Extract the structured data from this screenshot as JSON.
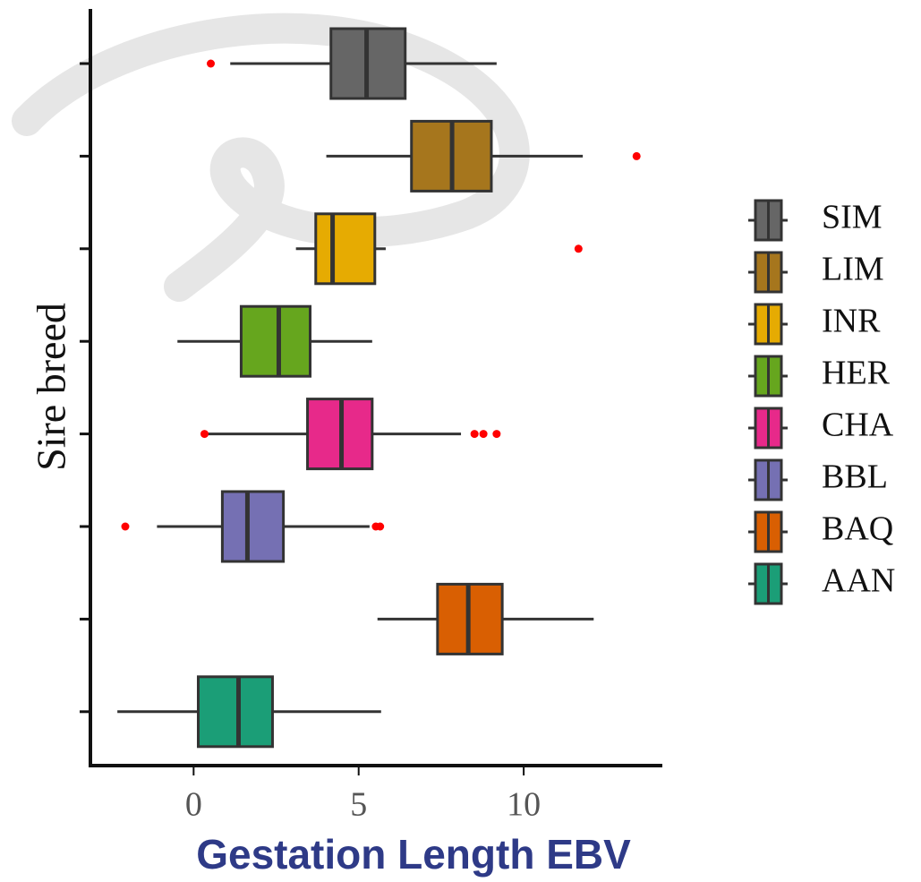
{
  "chart_data": {
    "type": "boxplot",
    "orientation": "horizontal",
    "xlabel": "Gestation Length EBV",
    "ylabel": "Sire breed",
    "xlim": [
      -3.1,
      14.2
    ],
    "xticks": [
      0,
      5,
      10
    ],
    "series": [
      {
        "name": "SIM",
        "color": "#666666",
        "whisker_low": 1.11,
        "q1": 4.16,
        "median": 5.24,
        "q3": 6.41,
        "whisker_high": 9.18,
        "outliers": [
          0.52
        ]
      },
      {
        "name": "LIM",
        "color": "#A6761D",
        "whisker_low": 4.02,
        "q1": 6.6,
        "median": 7.83,
        "q3": 9.02,
        "whisker_high": 11.79,
        "outliers": [
          13.42
        ]
      },
      {
        "name": "INR",
        "color": "#E6AB02",
        "whisker_low": 3.1,
        "q1": 3.7,
        "median": 4.21,
        "q3": 5.49,
        "whisker_high": 5.82,
        "outliers": [
          11.66
        ]
      },
      {
        "name": "HER",
        "color": "#66A61E",
        "whisker_low": -0.49,
        "q1": 1.44,
        "median": 2.58,
        "q3": 3.53,
        "whisker_high": 5.41,
        "outliers": []
      },
      {
        "name": "CHA",
        "color": "#E7298A",
        "whisker_low": 0.38,
        "q1": 3.45,
        "median": 4.48,
        "q3": 5.41,
        "whisker_high": 8.1,
        "outliers": [
          0.33,
          8.51,
          8.78,
          9.18
        ]
      },
      {
        "name": "BBL",
        "color": "#7570B3",
        "whisker_low": -1.11,
        "q1": 0.87,
        "median": 1.63,
        "q3": 2.72,
        "whisker_high": 5.33,
        "outliers": [
          -2.07,
          5.52,
          5.65
        ]
      },
      {
        "name": "BAQ",
        "color": "#D95F02",
        "whisker_low": 5.57,
        "q1": 7.39,
        "median": 8.32,
        "q3": 9.35,
        "whisker_high": 12.12,
        "outliers": []
      },
      {
        "name": "AAN",
        "color": "#1B9E77",
        "whisker_low": -2.31,
        "q1": 0.14,
        "median": 1.36,
        "q3": 2.39,
        "whisker_high": 5.68,
        "outliers": []
      }
    ]
  }
}
